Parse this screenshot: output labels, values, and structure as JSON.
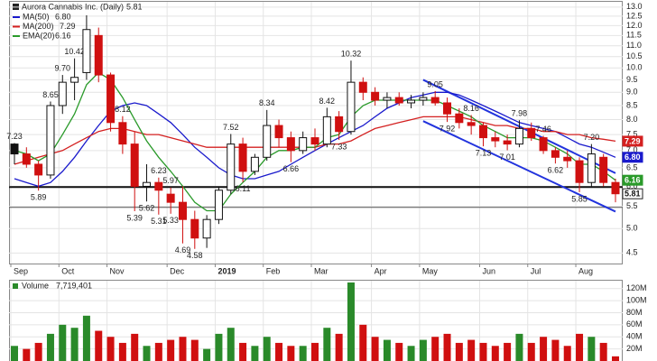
{
  "chart_data": {
    "type": "candlestick",
    "title": "Aurora Cannabis Inc. (Daily)",
    "categories": [
      "Sep",
      null,
      null,
      null,
      "Oct",
      null,
      null,
      null,
      "Nov",
      null,
      null,
      null,
      null,
      "Dec",
      null,
      null,
      null,
      "2019",
      null,
      null,
      null,
      "Feb",
      null,
      null,
      null,
      "Mar",
      null,
      null,
      null,
      null,
      "Apr",
      null,
      null,
      null,
      "May",
      null,
      null,
      null,
      null,
      "Jun",
      null,
      null,
      null,
      "Jul",
      null,
      null,
      null,
      "Aug",
      null,
      null,
      null
    ],
    "open": [
      7.2,
      6.9,
      6.6,
      6.3,
      8.5,
      9.4,
      9.8,
      11.5,
      9.7,
      7.9,
      7.2,
      6.0,
      6.1,
      5.8,
      5.6,
      5.2,
      4.8,
      5.2,
      5.9,
      7.2,
      6.4,
      6.8,
      7.8,
      7.4,
      7.0,
      7.4,
      7.2,
      8.1,
      7.6,
      9.4,
      9.0,
      8.7,
      8.8,
      8.6,
      8.7,
      8.8,
      8.6,
      8.2,
      7.9,
      7.8,
      7.4,
      7.3,
      7.2,
      7.7,
      7.4,
      7.0,
      6.8,
      6.7,
      6.1,
      6.8,
      6.1
    ],
    "high": [
      7.23,
      7.1,
      6.7,
      8.65,
      9.7,
      10.42,
      12.55,
      11.9,
      9.8,
      8.12,
      7.6,
      6.6,
      6.23,
      5.97,
      6.0,
      5.4,
      5.3,
      6.0,
      7.52,
      7.4,
      6.9,
      8.34,
      8.0,
      7.6,
      7.6,
      7.7,
      8.42,
      8.3,
      10.32,
      9.6,
      9.2,
      9.0,
      9.0,
      8.9,
      9.0,
      9.05,
      8.8,
      8.4,
      8.16,
      7.9,
      7.6,
      7.5,
      7.98,
      7.9,
      7.46,
      7.1,
      7.0,
      6.8,
      7.2,
      6.9,
      6.2
    ],
    "low": [
      6.6,
      6.5,
      5.89,
      6.2,
      8.2,
      8.7,
      9.5,
      9.4,
      7.6,
      6.9,
      5.39,
      5.62,
      5.31,
      5.33,
      4.69,
      4.58,
      4.6,
      5.1,
      5.8,
      6.11,
      6.3,
      6.7,
      7.1,
      6.66,
      6.9,
      7.0,
      7.1,
      7.33,
      7.5,
      8.7,
      8.5,
      8.4,
      8.5,
      8.4,
      8.5,
      8.5,
      7.92,
      7.7,
      7.5,
      7.13,
      7.1,
      7.01,
      7.1,
      7.3,
      6.9,
      6.62,
      6.5,
      5.85,
      6.0,
      6.0,
      5.6
    ],
    "close": [
      6.9,
      6.6,
      6.3,
      8.5,
      9.4,
      9.6,
      11.8,
      9.7,
      7.9,
      7.2,
      6.0,
      6.1,
      5.9,
      5.6,
      5.2,
      4.8,
      5.2,
      5.9,
      7.2,
      6.4,
      6.8,
      7.8,
      7.4,
      7.0,
      7.4,
      7.2,
      8.1,
      7.6,
      9.4,
      9.0,
      8.7,
      8.8,
      8.6,
      8.7,
      8.8,
      8.6,
      8.2,
      7.9,
      7.8,
      7.4,
      7.3,
      7.2,
      7.7,
      7.4,
      7.0,
      6.8,
      6.7,
      6.1,
      6.9,
      6.1,
      5.81
    ],
    "high_labels": [
      7.23,
      null,
      null,
      8.65,
      {
        "value": 9.7,
        "label": "9.70"
      },
      10.42,
      null,
      null,
      null,
      8.12,
      null,
      null,
      6.23,
      5.97,
      null,
      null,
      null,
      null,
      7.52,
      null,
      null,
      8.34,
      null,
      null,
      null,
      null,
      8.42,
      null,
      10.32,
      null,
      null,
      null,
      null,
      null,
      null,
      9.05,
      null,
      null,
      8.16,
      null,
      null,
      null,
      7.98,
      null,
      7.46,
      null,
      null,
      null,
      {
        "value": 7.2,
        "label": "7.20"
      },
      null,
      null
    ],
    "low_labels": [
      null,
      null,
      5.89,
      null,
      null,
      null,
      null,
      null,
      null,
      null,
      5.39,
      5.62,
      5.31,
      5.33,
      4.69,
      4.58,
      null,
      null,
      null,
      6.11,
      null,
      null,
      null,
      6.66,
      null,
      null,
      null,
      7.33,
      null,
      null,
      null,
      null,
      null,
      null,
      null,
      null,
      7.92,
      null,
      null,
      7.13,
      null,
      7.01,
      null,
      null,
      null,
      6.62,
      null,
      5.85,
      null,
      null,
      null
    ],
    "series": [
      {
        "name": "MA(50)",
        "color": "#1a1acc",
        "legend_value": {
          "value": 6.8,
          "label": "6.80"
        },
        "values": [
          6.2,
          6.1,
          6.0,
          6.1,
          6.4,
          6.8,
          7.3,
          7.8,
          8.3,
          8.5,
          8.6,
          8.5,
          8.2,
          7.9,
          7.5,
          7.1,
          6.8,
          6.5,
          6.3,
          6.2,
          6.2,
          6.3,
          6.4,
          6.6,
          6.8,
          7.0,
          7.2,
          7.4,
          7.6,
          7.8,
          8.1,
          8.4,
          8.6,
          8.8,
          8.9,
          9.0,
          9.0,
          8.9,
          8.7,
          8.5,
          8.3,
          8.1,
          7.9,
          7.8,
          7.7,
          7.6,
          7.4,
          7.2,
          7.1,
          6.95,
          6.8
        ]
      },
      {
        "name": "MA(200)",
        "color": "#d42020",
        "legend_value": {
          "value": 7.29,
          "label": "7.29"
        },
        "values": [
          6.6,
          6.7,
          6.8,
          6.9,
          7.0,
          7.2,
          7.4,
          7.6,
          7.7,
          7.7,
          7.6,
          7.5,
          7.5,
          7.4,
          7.3,
          7.2,
          7.1,
          7.1,
          7.1,
          7.1,
          7.1,
          7.1,
          7.1,
          7.1,
          7.1,
          7.1,
          7.2,
          7.2,
          7.3,
          7.5,
          7.7,
          7.8,
          7.9,
          8.0,
          8.1,
          8.1,
          8.1,
          8.1,
          8.0,
          7.9,
          7.8,
          7.8,
          7.7,
          7.7,
          7.6,
          7.6,
          7.5,
          7.5,
          7.4,
          7.35,
          7.29
        ]
      },
      {
        "name": "EMA(20)",
        "color": "#2a9a2a",
        "legend_value": {
          "value": 6.16,
          "label": "6.16"
        },
        "values": [
          7.0,
          6.9,
          6.7,
          6.9,
          7.5,
          8.2,
          9.3,
          9.8,
          9.5,
          8.8,
          8.0,
          7.3,
          6.8,
          6.4,
          6.0,
          5.6,
          5.4,
          5.4,
          5.8,
          6.1,
          6.4,
          6.8,
          7.0,
          7.0,
          7.1,
          7.1,
          7.4,
          7.5,
          8.1,
          8.5,
          8.7,
          8.7,
          8.7,
          8.7,
          8.7,
          8.7,
          8.5,
          8.3,
          8.1,
          7.8,
          7.6,
          7.4,
          7.4,
          7.4,
          7.3,
          7.1,
          6.9,
          6.6,
          6.6,
          6.4,
          6.16
        ]
      }
    ],
    "ylim": [
      4.3,
      13.3
    ],
    "log_scale": true,
    "grid": true,
    "yticks": [
      4.5,
      {
        "value": 5,
        "label": "5.0"
      },
      5.5,
      {
        "value": 6,
        "label": "6.0"
      },
      6.5,
      {
        "value": 7,
        "label": "7.0"
      },
      7.5,
      {
        "value": 8,
        "label": "8.0"
      },
      8.5,
      {
        "value": 9,
        "label": "9.0"
      },
      9.5,
      {
        "value": 10,
        "label": "10.0"
      },
      10.5,
      {
        "value": 11,
        "label": "11.0"
      },
      11.5,
      {
        "value": 12,
        "label": "12.0"
      },
      12.5,
      {
        "value": 13,
        "label": "13.0"
      }
    ],
    "levels": [
      {
        "value": 5.98,
        "color": "#111111"
      },
      {
        "value": 5.48,
        "color": "#555555"
      }
    ],
    "trend_lines": [
      {
        "color": "#2233dd",
        "start": 34,
        "end": 50,
        "values": [
          9.5,
          6.35
        ]
      },
      {
        "color": "#2233dd",
        "start": 34,
        "end": 50,
        "values": [
          7.95,
          5.38
        ]
      }
    ],
    "volume": {
      "name": "Volume",
      "last": {
        "value": 7.719401,
        "label": "7,719,401"
      },
      "values": [
        25,
        20,
        30,
        45,
        60,
        55,
        75,
        50,
        40,
        30,
        45,
        25,
        30,
        35,
        40,
        35,
        20,
        45,
        55,
        30,
        25,
        40,
        30,
        25,
        25,
        30,
        55,
        45,
        130,
        60,
        40,
        35,
        30,
        25,
        35,
        40,
        45,
        30,
        35,
        30,
        25,
        30,
        45,
        30,
        40,
        35,
        25,
        45,
        40,
        30,
        7.719401
      ],
      "ylim": [
        0,
        133
      ],
      "yticks": [
        {
          "value": 20,
          "label": "20M"
        },
        {
          "value": 40,
          "label": "40M"
        },
        {
          "value": 60,
          "label": "60M"
        },
        {
          "value": 80,
          "label": "80M"
        },
        {
          "value": 100,
          "label": "100M"
        },
        {
          "value": 120,
          "label": "120M"
        }
      ]
    }
  }
}
